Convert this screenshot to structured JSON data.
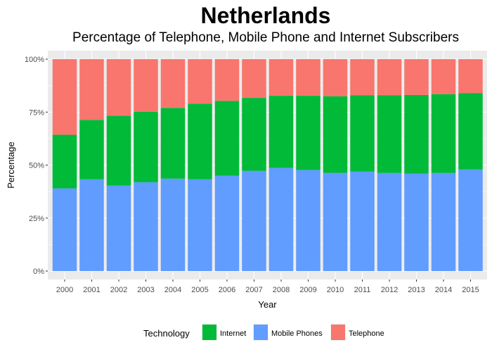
{
  "chart_data": {
    "type": "bar",
    "stacked": true,
    "normalized": true,
    "title": "Netherlands",
    "subtitle": "Percentage of Telephone, Mobile Phone and Internet Subscribers",
    "xlabel": "Year",
    "ylabel": "Percentage",
    "ylim": [
      0,
      1
    ],
    "yticks": [
      "0%",
      "25%",
      "50%",
      "75%",
      "100%"
    ],
    "grid": true,
    "legend_position": "bottom",
    "legend_title": "Technology",
    "categories": [
      "2000",
      "2001",
      "2002",
      "2003",
      "2004",
      "2005",
      "2006",
      "2007",
      "2008",
      "2009",
      "2010",
      "2011",
      "2012",
      "2013",
      "2014",
      "2015"
    ],
    "series": [
      {
        "name": "Mobile Phones",
        "color": "#619CFF",
        "values": [
          39.0,
          43.3,
          40.3,
          41.9,
          43.6,
          43.3,
          45.0,
          47.3,
          48.7,
          47.7,
          46.3,
          47.0,
          46.3,
          46.0,
          46.3,
          48.0
        ]
      },
      {
        "name": "Internet",
        "color": "#00BA38",
        "values": [
          25.3,
          28.0,
          33.0,
          33.3,
          33.4,
          35.7,
          35.3,
          34.4,
          34.0,
          35.0,
          36.2,
          36.0,
          36.7,
          37.1,
          37.2,
          36.0
        ]
      },
      {
        "name": "Telephone",
        "color": "#F8766D",
        "values": [
          35.7,
          28.7,
          26.7,
          24.8,
          23.0,
          21.0,
          19.7,
          18.3,
          17.3,
          17.3,
          17.5,
          17.0,
          17.0,
          16.9,
          16.5,
          16.0
        ]
      }
    ],
    "legend_order": [
      "Internet",
      "Mobile Phones",
      "Telephone"
    ],
    "panel_background": "#EBEBEB",
    "grid_color": "#FFFFFF"
  }
}
